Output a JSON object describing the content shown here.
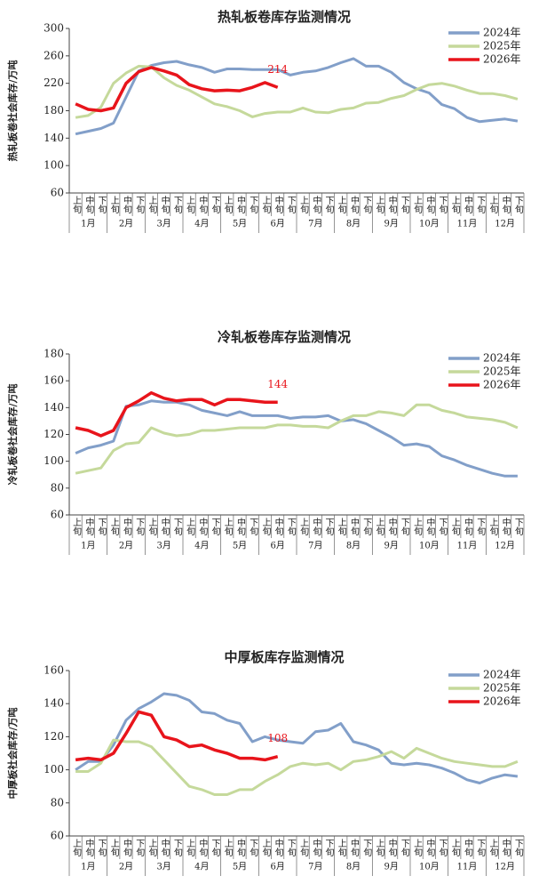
{
  "chart_data": [
    {
      "type": "line",
      "title": "热轧板卷库存监测情况",
      "y_label": "热轧板卷社会库存/万吨",
      "categories": [
        "上旬",
        "中旬",
        "下旬",
        "上旬",
        "中旬",
        "下旬",
        "上旬",
        "中旬",
        "下旬",
        "上旬",
        "中旬",
        "下旬",
        "上旬",
        "中旬",
        "下旬",
        "上旬",
        "中旬",
        "下旬",
        "上旬",
        "中旬",
        "下旬",
        "上旬",
        "中旬",
        "下旬",
        "上旬",
        "中旬",
        "下旬",
        "上旬",
        "中旬",
        "下旬",
        "上旬",
        "中旬",
        "下旬",
        "上旬",
        "中旬",
        "下旬"
      ],
      "months": [
        "1月",
        "2月",
        "3月",
        "4月",
        "5月",
        "6月",
        "7月",
        "8月",
        "9月",
        "10月",
        "11月",
        "12月"
      ],
      "ylim": [
        60,
        300
      ],
      "yticks": [
        60,
        100,
        140,
        180,
        220,
        260,
        300
      ],
      "series": [
        {
          "name": "2024年",
          "color": "#829fc9",
          "values": [
            146,
            150,
            154,
            162,
            200,
            238,
            246,
            250,
            252,
            247,
            243,
            236,
            241,
            241,
            240,
            240,
            240,
            232,
            236,
            238,
            243,
            250,
            256,
            245,
            245,
            236,
            221,
            212,
            206,
            189,
            183,
            170,
            164,
            166,
            168,
            165
          ]
        },
        {
          "name": "2025年",
          "color": "#c5d99b",
          "values": [
            170,
            173,
            185,
            220,
            235,
            245,
            244,
            228,
            217,
            210,
            200,
            190,
            186,
            180,
            171,
            176,
            178,
            178,
            184,
            178,
            177,
            182,
            184,
            191,
            192,
            198,
            202,
            211,
            218,
            220,
            216,
            210,
            205,
            205,
            202,
            197
          ]
        },
        {
          "name": "2026年",
          "color": "#e8141b",
          "values": [
            190,
            182,
            180,
            184,
            220,
            237,
            243,
            238,
            232,
            218,
            212,
            209,
            210,
            209,
            214,
            221,
            214,
            null,
            null,
            null,
            null,
            null,
            null,
            null,
            null,
            null,
            null,
            null,
            null,
            null,
            null,
            null,
            null,
            null,
            null,
            null
          ]
        }
      ]
    },
    {
      "type": "line",
      "title": "冷轧板卷库存监测情况",
      "y_label": "冷轧板卷社会库存/万吨",
      "categories": [
        "上旬",
        "中旬",
        "下旬",
        "上旬",
        "中旬",
        "下旬",
        "上旬",
        "中旬",
        "下旬",
        "上旬",
        "中旬",
        "下旬",
        "上旬",
        "中旬",
        "下旬",
        "上旬",
        "中旬",
        "下旬",
        "上旬",
        "中旬",
        "下旬",
        "上旬",
        "中旬",
        "下旬",
        "上旬",
        "中旬",
        "下旬",
        "上旬",
        "中旬",
        "下旬",
        "上旬",
        "中旬",
        "下旬",
        "上旬",
        "中旬",
        "下旬"
      ],
      "months": [
        "1月",
        "2月",
        "3月",
        "4月",
        "5月",
        "6月",
        "7月",
        "8月",
        "9月",
        "10月",
        "11月",
        "12月"
      ],
      "ylim": [
        60,
        180
      ],
      "yticks": [
        60,
        80,
        100,
        120,
        140,
        160,
        180
      ],
      "series": [
        {
          "name": "2024年",
          "color": "#829fc9",
          "values": [
            106,
            110,
            112,
            115,
            141,
            142,
            145,
            144,
            144,
            142,
            138,
            136,
            134,
            137,
            134,
            134,
            134,
            132,
            133,
            133,
            134,
            130,
            131,
            128,
            123,
            118,
            112,
            113,
            111,
            104,
            101,
            97,
            94,
            91,
            89,
            89
          ]
        },
        {
          "name": "2025年",
          "color": "#c5d99b",
          "values": [
            91,
            93,
            95,
            108,
            113,
            114,
            125,
            121,
            119,
            120,
            123,
            123,
            124,
            125,
            125,
            125,
            127,
            127,
            126,
            126,
            125,
            130,
            134,
            134,
            137,
            136,
            134,
            142,
            142,
            138,
            136,
            133,
            132,
            131,
            129,
            125
          ]
        },
        {
          "name": "2026年",
          "color": "#e8141b",
          "values": [
            125,
            123,
            119,
            123,
            140,
            145,
            151,
            147,
            145,
            146,
            146,
            142,
            146,
            146,
            145,
            144,
            144,
            null,
            null,
            null,
            null,
            null,
            null,
            null,
            null,
            null,
            null,
            null,
            null,
            null,
            null,
            null,
            null,
            null,
            null,
            null
          ]
        }
      ]
    },
    {
      "type": "line",
      "title": "中厚板库存监测情况",
      "y_label": "中厚板社会库存/万吨",
      "categories": [
        "上旬",
        "中旬",
        "下旬",
        "上旬",
        "中旬",
        "下旬",
        "上旬",
        "中旬",
        "下旬",
        "上旬",
        "中旬",
        "下旬",
        "上旬",
        "中旬",
        "下旬",
        "上旬",
        "中旬",
        "下旬",
        "上旬",
        "中旬",
        "下旬",
        "上旬",
        "中旬",
        "下旬",
        "上旬",
        "中旬",
        "下旬",
        "上旬",
        "中旬",
        "下旬",
        "上旬",
        "中旬",
        "下旬",
        "上旬",
        "中旬",
        "下旬"
      ],
      "months": [
        "1月",
        "2月",
        "3月",
        "4月",
        "5月",
        "6月",
        "7月",
        "8月",
        "9月",
        "10月",
        "11月",
        "12月"
      ],
      "ylim": [
        60,
        160
      ],
      "yticks": [
        60,
        80,
        100,
        120,
        140,
        160
      ],
      "series": [
        {
          "name": "2024年",
          "color": "#829fc9",
          "values": [
            100,
            105,
            105,
            115,
            130,
            137,
            141,
            146,
            145,
            142,
            135,
            134,
            130,
            128,
            117,
            120,
            118,
            117,
            116,
            123,
            124,
            128,
            117,
            115,
            112,
            104,
            103,
            104,
            103,
            101,
            98,
            94,
            92,
            95,
            97,
            96
          ]
        },
        {
          "name": "2025年",
          "color": "#c5d99b",
          "values": [
            99,
            99,
            104,
            118,
            117,
            117,
            114,
            106,
            98,
            90,
            88,
            85,
            85,
            88,
            88,
            93,
            97,
            102,
            104,
            103,
            104,
            100,
            105,
            106,
            108,
            111,
            107,
            113,
            110,
            107,
            105,
            104,
            103,
            102,
            102,
            105
          ]
        },
        {
          "name": "2026年",
          "color": "#e8141b",
          "values": [
            106,
            107,
            106,
            110,
            122,
            135,
            133,
            120,
            118,
            114,
            115,
            112,
            110,
            107,
            107,
            106,
            108,
            null,
            null,
            null,
            null,
            null,
            null,
            null,
            null,
            null,
            null,
            null,
            null,
            null,
            null,
            null,
            null,
            null,
            null,
            null
          ]
        }
      ]
    }
  ]
}
